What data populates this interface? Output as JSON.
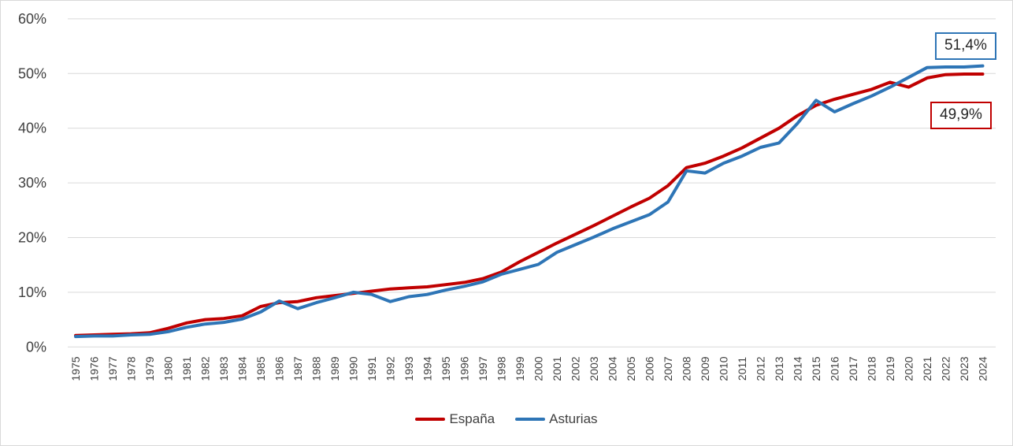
{
  "chart_data": {
    "type": "line",
    "title": "",
    "xlabel": "",
    "ylabel": "",
    "categories": [
      "1975",
      "1976",
      "1977",
      "1978",
      "1979",
      "1980",
      "1981",
      "1982",
      "1983",
      "1984",
      "1985",
      "1986",
      "1987",
      "1988",
      "1989",
      "1990",
      "1991",
      "1992",
      "1993",
      "1994",
      "1995",
      "1996",
      "1997",
      "1998",
      "1999",
      "2000",
      "2001",
      "2002",
      "2003",
      "2004",
      "2005",
      "2006",
      "2007",
      "2008",
      "2009",
      "2010",
      "2011",
      "2012",
      "2013",
      "2014",
      "2015",
      "2016",
      "2017",
      "2018",
      "2019",
      "2020",
      "2021",
      "2022",
      "2023",
      "2024"
    ],
    "series": [
      {
        "name": "España",
        "color": "#C00000",
        "values": [
          2.1,
          2.2,
          2.3,
          2.4,
          2.6,
          3.4,
          4.4,
          5.0,
          5.2,
          5.7,
          7.4,
          8.1,
          8.3,
          9.0,
          9.4,
          9.8,
          10.2,
          10.6,
          10.8,
          11.0,
          11.4,
          11.8,
          12.5,
          13.7,
          15.6,
          17.3,
          19.0,
          20.6,
          22.2,
          23.9,
          25.6,
          27.2,
          29.5,
          32.8,
          33.6,
          34.9,
          36.4,
          38.2,
          40.0,
          42.3,
          44.2,
          45.3,
          46.2,
          47.1,
          48.4,
          47.5,
          49.2,
          49.8,
          49.9,
          49.9
        ]
      },
      {
        "name": "Asturias",
        "color": "#2E75B6",
        "values": [
          1.9,
          2.0,
          2.0,
          2.2,
          2.3,
          2.8,
          3.6,
          4.2,
          4.5,
          5.1,
          6.4,
          8.4,
          7.0,
          8.1,
          9.0,
          10.0,
          9.6,
          8.3,
          9.2,
          9.6,
          10.4,
          11.1,
          11.9,
          13.3,
          14.2,
          15.1,
          17.3,
          18.7,
          20.1,
          21.6,
          22.9,
          24.2,
          26.5,
          32.2,
          31.8,
          33.6,
          34.9,
          36.5,
          37.3,
          40.9,
          45.1,
          43.0,
          44.5,
          45.9,
          47.5,
          49.3,
          51.1,
          51.2,
          51.2,
          51.4
        ]
      }
    ],
    "ylim": [
      0,
      60
    ],
    "ytick_step": 10,
    "yticks": [
      "0%",
      "10%",
      "20%",
      "30%",
      "40%",
      "50%",
      "60%"
    ],
    "grid": true,
    "legend_position": "bottom",
    "end_labels": {
      "asturias": "51,4%",
      "espana": "49,9%"
    }
  },
  "legend": {
    "espana_label": "España",
    "asturias_label": "Asturias"
  },
  "colors": {
    "espana": "#C00000",
    "asturias": "#2E75B6",
    "gridline": "#D9D9D9",
    "axis_text": "#404040",
    "label_text": "#262626",
    "background": "#FFFFFF"
  }
}
